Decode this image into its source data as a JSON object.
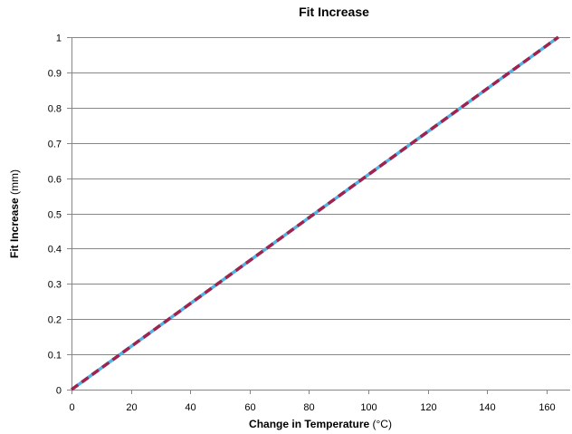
{
  "chart_data": {
    "type": "line",
    "title": "Fit Increase",
    "xlabel": {
      "bold": "Change in Temperature",
      "normal": " (°C)"
    },
    "ylabel": {
      "bold": "Fit Increase",
      "normal": " (mm)"
    },
    "xlim": [
      0,
      168
    ],
    "ylim": [
      0,
      1
    ],
    "xticks": [
      0,
      20,
      40,
      60,
      80,
      100,
      120,
      140,
      160
    ],
    "yticks": [
      0,
      0.1,
      0.2,
      0.3,
      0.4,
      0.5,
      0.6,
      0.7,
      0.8,
      0.9,
      1
    ],
    "grid": "horizontal",
    "legend": "none",
    "series": [
      {
        "x": [
          0,
          164
        ],
        "y": [
          0,
          1
        ],
        "color": "#4FB3E6",
        "style": "solid"
      },
      {
        "x": [
          0,
          164
        ],
        "y": [
          0,
          1
        ],
        "color": "#A0234F",
        "style": "dashed"
      }
    ]
  }
}
